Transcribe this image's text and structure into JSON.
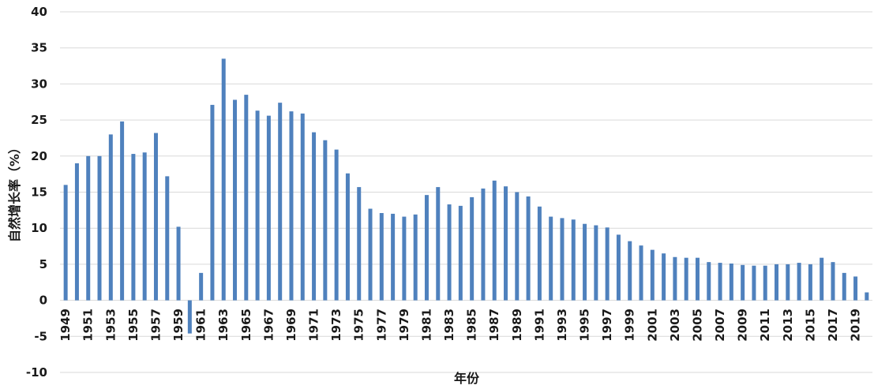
{
  "chart_data": {
    "type": "bar",
    "xlabel": "年份",
    "ylabel": "自然增长率（%）",
    "ylim": [
      -10,
      40
    ],
    "yticks": [
      -10,
      -5,
      0,
      5,
      10,
      15,
      20,
      25,
      30,
      35,
      40
    ],
    "grid": true,
    "legend": "none",
    "bar_color": "#4f81bd",
    "categories": [
      "1949",
      "1950",
      "1951",
      "1952",
      "1953",
      "1954",
      "1955",
      "1956",
      "1957",
      "1958",
      "1959",
      "1960",
      "1961",
      "1962",
      "1963",
      "1964",
      "1965",
      "1966",
      "1967",
      "1968",
      "1969",
      "1970",
      "1971",
      "1972",
      "1973",
      "1974",
      "1975",
      "1976",
      "1977",
      "1978",
      "1979",
      "1980",
      "1981",
      "1982",
      "1983",
      "1984",
      "1985",
      "1986",
      "1987",
      "1988",
      "1989",
      "1990",
      "1991",
      "1992",
      "1993",
      "1994",
      "1995",
      "1996",
      "1997",
      "1998",
      "1999",
      "2000",
      "2001",
      "2002",
      "2003",
      "2004",
      "2005",
      "2006",
      "2007",
      "2008",
      "2009",
      "2010",
      "2011",
      "2012",
      "2013",
      "2014",
      "2015",
      "2016",
      "2017",
      "2018",
      "2019",
      "2020"
    ],
    "values": [
      16.0,
      19.0,
      20.0,
      20.0,
      23.0,
      24.8,
      20.3,
      20.5,
      23.2,
      17.2,
      10.2,
      -4.6,
      3.8,
      27.1,
      33.5,
      27.8,
      28.5,
      26.3,
      25.6,
      27.4,
      26.2,
      25.9,
      23.3,
      22.2,
      20.9,
      17.6,
      15.7,
      12.7,
      12.1,
      12.0,
      11.6,
      11.9,
      14.6,
      15.7,
      13.3,
      13.1,
      14.3,
      15.5,
      16.6,
      15.8,
      15.0,
      14.4,
      13.0,
      11.6,
      11.4,
      11.2,
      10.6,
      10.4,
      10.1,
      9.1,
      8.2,
      7.6,
      7.0,
      6.5,
      6.0,
      5.9,
      5.9,
      5.3,
      5.2,
      5.1,
      4.9,
      4.8,
      4.8,
      5.0,
      5.0,
      5.2,
      5.0,
      5.9,
      5.3,
      3.8,
      3.3,
      1.1
    ],
    "xtick_labels": [
      "1949",
      "1951",
      "1953",
      "1955",
      "1957",
      "1959",
      "1961",
      "1963",
      "1965",
      "1967",
      "1969",
      "1971",
      "1973",
      "1975",
      "1977",
      "1979",
      "1981",
      "1983",
      "1985",
      "1987",
      "1989",
      "1991",
      "1993",
      "1995",
      "1997",
      "1999",
      "2001",
      "2003",
      "2005",
      "2007",
      "2009",
      "2011",
      "2013",
      "2015",
      "2017",
      "2019"
    ]
  }
}
